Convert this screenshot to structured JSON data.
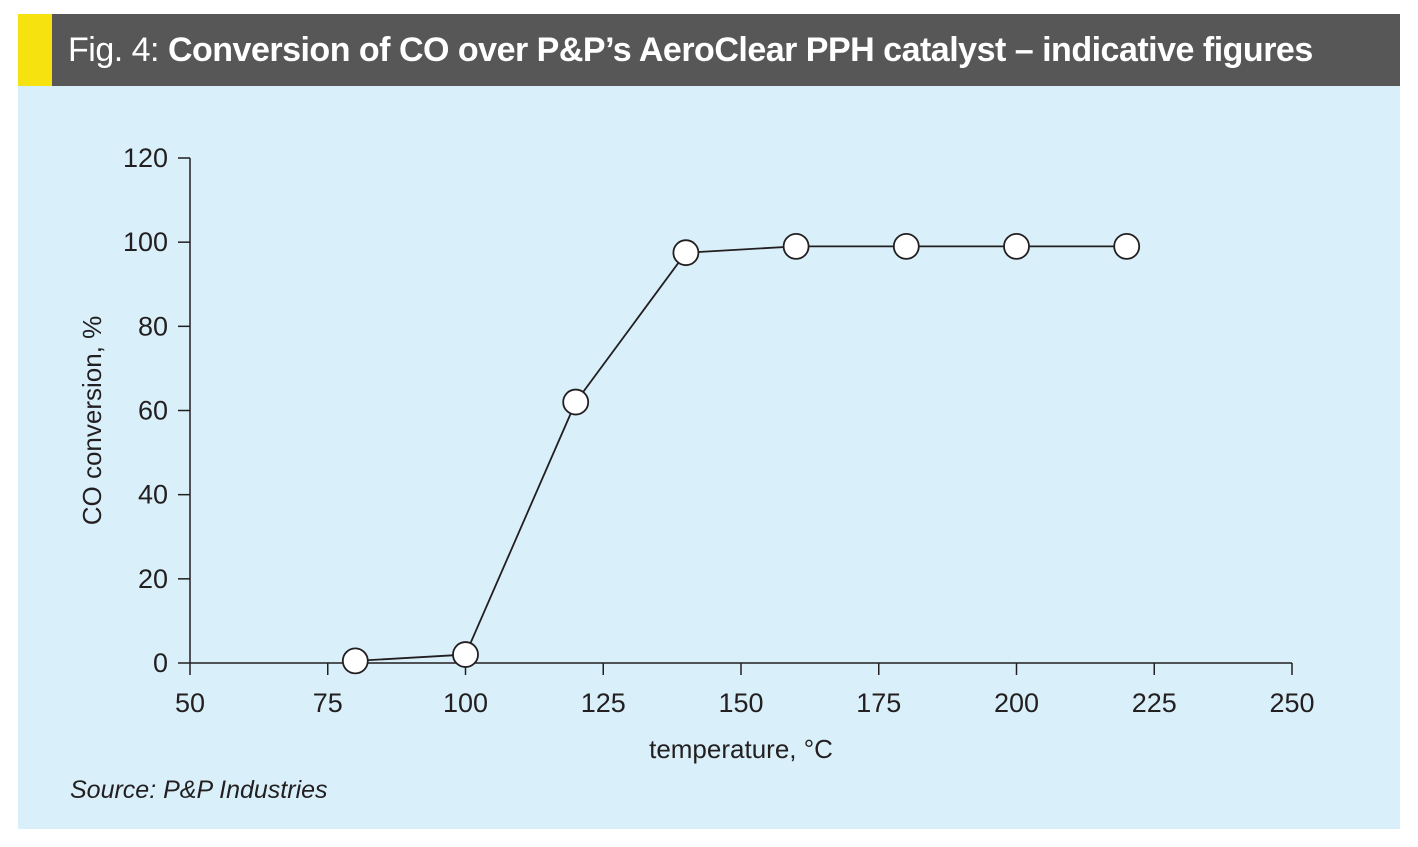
{
  "header": {
    "figure_label": "Fig. 4: ",
    "title": "Conversion of CO over P&P’s AeroClear PPH catalyst – indicative figures"
  },
  "colors": {
    "header_bg": "#575757",
    "accent": "#f5e20f",
    "panel_bg": "#d9f0fa",
    "line": "#231f20",
    "marker_fill": "#ffffff"
  },
  "chart_data": {
    "type": "line",
    "title": "Conversion of CO over P&P’s AeroClear PPH catalyst – indicative figures",
    "xlabel": "temperature, °C",
    "ylabel": "CO conversion, %",
    "xlim": [
      50,
      250
    ],
    "ylim": [
      0,
      120
    ],
    "xticks": [
      50,
      75,
      100,
      125,
      150,
      175,
      200,
      225,
      250
    ],
    "yticks": [
      0,
      20,
      40,
      60,
      80,
      100,
      120
    ],
    "grid": false,
    "series": [
      {
        "x": [
          80,
          100,
          120,
          140,
          160,
          180,
          200,
          220
        ],
        "y": [
          0.5,
          2,
          62,
          97.5,
          99,
          99,
          99,
          99
        ],
        "marker": "open-circle"
      }
    ]
  },
  "footer": {
    "source": "Source: P&P Industries"
  }
}
